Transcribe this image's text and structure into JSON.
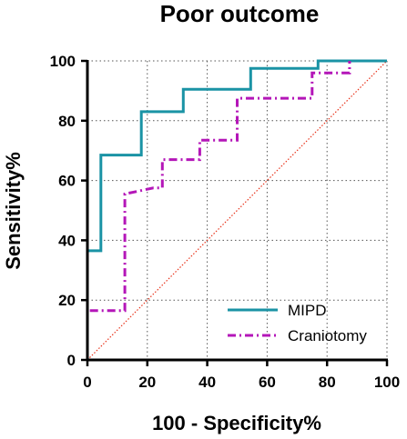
{
  "chart_data": {
    "type": "line",
    "title": "Poor outcome",
    "xlabel": "100 - Specificity%",
    "ylabel": "Sensitivity%",
    "xlim": [
      0,
      100
    ],
    "ylim": [
      0,
      100
    ],
    "x_ticks": [
      0,
      20,
      40,
      60,
      80,
      100
    ],
    "y_ticks": [
      0,
      20,
      40,
      60,
      80,
      100
    ],
    "grid": true,
    "legend_position": "bottom-right",
    "reference_line": {
      "x": [
        0,
        100
      ],
      "y": [
        0,
        100
      ],
      "color": "#e8341c",
      "style": "dotted"
    },
    "series": [
      {
        "name": "MIPD",
        "color": "#1a93a5",
        "style": "solid",
        "x": [
          0,
          0,
          4.5,
          4.5,
          18,
          18,
          32,
          32,
          54.5,
          54.5,
          77,
          77,
          100
        ],
        "y": [
          0,
          36.5,
          36.5,
          68.5,
          68.5,
          83,
          83,
          90.5,
          90.5,
          97.5,
          97.5,
          100,
          100
        ]
      },
      {
        "name": "Craniotomy",
        "color": "#b416b8",
        "style": "dashdot",
        "x": [
          0,
          0,
          12.5,
          12.5,
          22,
          25,
          25,
          37.5,
          37.5,
          50,
          50,
          75,
          75,
          87.5,
          87.5
        ],
        "y": [
          0,
          16.5,
          16.5,
          55.5,
          57.5,
          57.5,
          67,
          67,
          73.5,
          73.5,
          87.5,
          87.5,
          96,
          96,
          100
        ]
      }
    ]
  }
}
